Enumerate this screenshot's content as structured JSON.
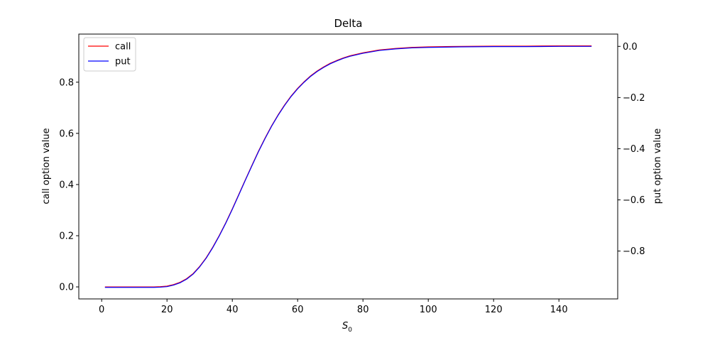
{
  "chart_data": {
    "type": "line",
    "title": "Delta",
    "xlabel_main": "S",
    "xlabel_sub": "0",
    "ylabel_left": "call option value",
    "ylabel_right": "put option value",
    "xlim": [
      -7,
      158
    ],
    "ylim_left": [
      -0.047,
      0.988
    ],
    "ylim_right": [
      -0.987,
      0.048
    ],
    "x_ticks": [
      0,
      20,
      40,
      60,
      80,
      100,
      120,
      140
    ],
    "y_ticks_left": [
      0.0,
      0.2,
      0.4,
      0.6,
      0.8
    ],
    "y_ticks_right": [
      -0.8,
      -0.6,
      -0.4,
      -0.2,
      0.0
    ],
    "grid": false,
    "legend_position": "top-left",
    "series": [
      {
        "name": "call",
        "axis": "left",
        "color": "#ff0000",
        "x": [
          1,
          10,
          16,
          18,
          20,
          22,
          24,
          26,
          28,
          30,
          32,
          34,
          36,
          38,
          40,
          42,
          44,
          46,
          48,
          50,
          52,
          54,
          56,
          58,
          60,
          62,
          64,
          66,
          68,
          70,
          72,
          74,
          76,
          78,
          80,
          85,
          90,
          95,
          100,
          110,
          120,
          130,
          140,
          150
        ],
        "values": [
          0.0,
          0.0,
          0.0,
          0.001,
          0.003,
          0.009,
          0.018,
          0.032,
          0.052,
          0.08,
          0.114,
          0.155,
          0.201,
          0.251,
          0.305,
          0.362,
          0.419,
          0.475,
          0.53,
          0.581,
          0.629,
          0.672,
          0.711,
          0.746,
          0.776,
          0.802,
          0.825,
          0.844,
          0.86,
          0.874,
          0.885,
          0.895,
          0.903,
          0.909,
          0.915,
          0.926,
          0.932,
          0.936,
          0.938,
          0.94,
          0.941,
          0.941,
          0.942,
          0.942
        ]
      },
      {
        "name": "put",
        "axis": "right",
        "color": "#0000ff",
        "x": [
          1,
          10,
          16,
          18,
          20,
          22,
          24,
          26,
          28,
          30,
          32,
          34,
          36,
          38,
          40,
          42,
          44,
          46,
          48,
          50,
          52,
          54,
          56,
          58,
          60,
          62,
          64,
          66,
          68,
          70,
          72,
          74,
          76,
          78,
          80,
          85,
          90,
          95,
          100,
          110,
          120,
          130,
          140,
          150
        ],
        "values": [
          -0.942,
          -0.942,
          -0.942,
          -0.941,
          -0.939,
          -0.933,
          -0.924,
          -0.91,
          -0.89,
          -0.862,
          -0.828,
          -0.787,
          -0.741,
          -0.691,
          -0.637,
          -0.58,
          -0.523,
          -0.467,
          -0.412,
          -0.361,
          -0.313,
          -0.27,
          -0.231,
          -0.196,
          -0.166,
          -0.14,
          -0.117,
          -0.098,
          -0.082,
          -0.068,
          -0.057,
          -0.047,
          -0.039,
          -0.033,
          -0.027,
          -0.016,
          -0.01,
          -0.006,
          -0.004,
          -0.002,
          -0.001,
          -0.001,
          0.0,
          0.0
        ]
      }
    ]
  }
}
